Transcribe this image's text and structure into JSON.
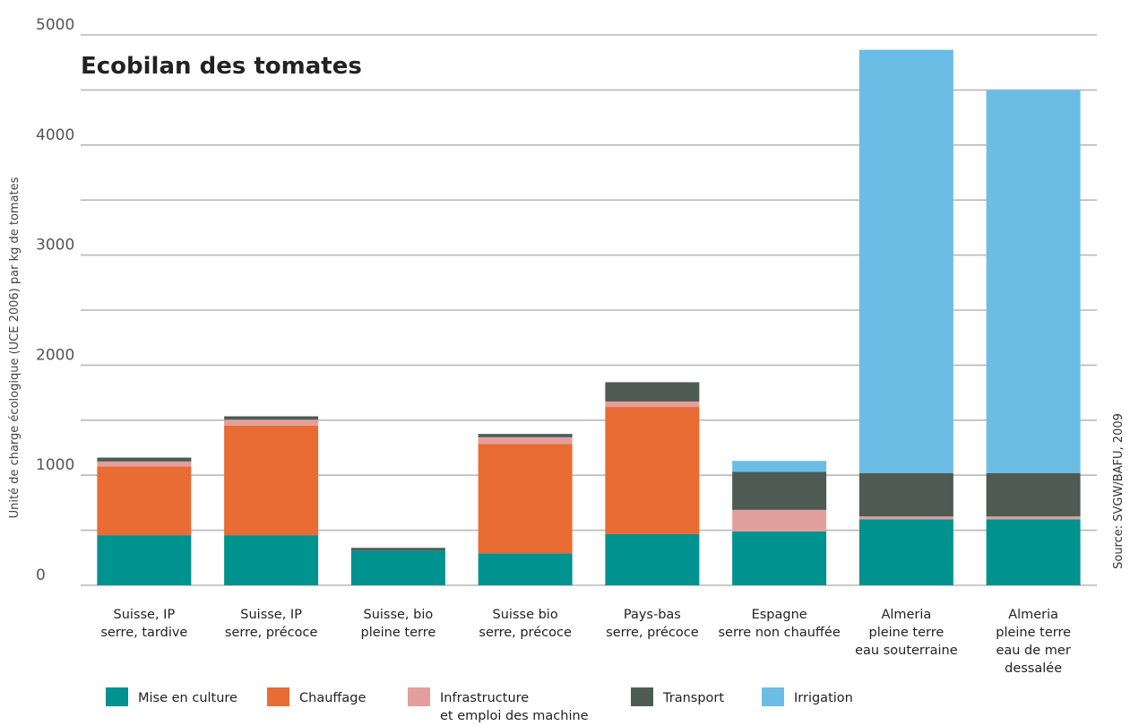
{
  "chart_data": {
    "type": "bar",
    "stacked": true,
    "title": "Ecobilan des tomates",
    "ylabel": "Unité de charge écologique (UCE 2006) par kg de tomates",
    "ylim": [
      0,
      5000
    ],
    "yticks": [
      "0",
      "1000",
      "2000",
      "3000",
      "4000",
      "5000"
    ],
    "source": "Source: SVGW/BAFU, 2009",
    "categories": [
      [
        "Suisse, IP",
        "serre, tardive"
      ],
      [
        "Suisse, IP",
        "serre, précoce"
      ],
      [
        "Suisse, bio",
        "pleine terre"
      ],
      [
        "Suisse bio",
        "serre, précoce"
      ],
      [
        "Pays-bas",
        "serre, précoce"
      ],
      [
        "Espagne",
        "serre non chauffée"
      ],
      [
        "Almeria",
        "pleine terre",
        "eau souterraine"
      ],
      [
        "Almeria",
        "pleine terre",
        "eau de mer",
        "dessalée"
      ]
    ],
    "series": [
      {
        "name": "Mise en culture",
        "color": "#00928f",
        "values": [
          455,
          455,
          315,
          290,
          465,
          490,
          600,
          600
        ]
      },
      {
        "name": "Chauffage",
        "color": "#e86c34",
        "values": [
          625,
          995,
          0,
          995,
          1155,
          0,
          0,
          0
        ]
      },
      {
        "name": "Infrastructure",
        "name_line2": "et emploi des machine",
        "color": "#e39f9b",
        "values": [
          45,
          55,
          0,
          60,
          50,
          195,
          25,
          25
        ]
      },
      {
        "name": "Transport",
        "color": "#4e5b55",
        "values": [
          35,
          30,
          25,
          30,
          175,
          345,
          395,
          395
        ]
      },
      {
        "name": "Irrigation",
        "color": "#6cbde5",
        "values": [
          0,
          0,
          0,
          0,
          0,
          100,
          3845,
          3480
        ]
      }
    ]
  }
}
